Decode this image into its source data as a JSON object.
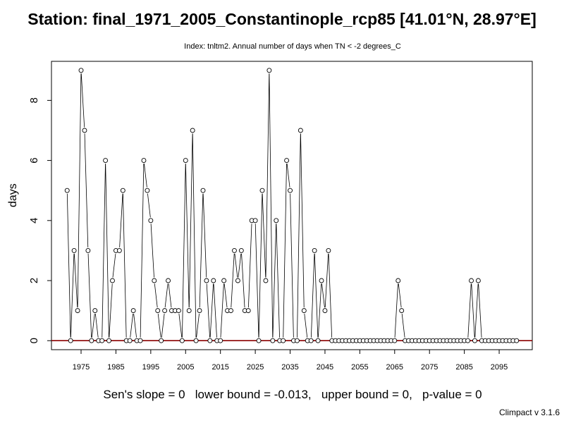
{
  "title": "Station: final_1971_2005_Constantinople_rcp85 [41.01°N, 28.97°E]",
  "subtitle": "Index: tnltm2. Annual number of days when TN < -2 degrees_C",
  "ylabel": "days",
  "footer": "Sen's slope = 0   lower bound = -0.013,   upper bound = 0,   p-value = 0",
  "version": "Climpact v 3.1.6",
  "colors": {
    "trend_line": "#8b0000",
    "series": "#000000",
    "axis": "#000000"
  },
  "chart_data": {
    "type": "line",
    "title": "Station: final_1971_2005_Constantinople_rcp85 [41.01°N, 28.97°E]",
    "xlabel": "",
    "ylabel": "days",
    "xlim": [
      1966.5,
      2104.5
    ],
    "ylim": [
      -0.3,
      9.3
    ],
    "x_ticks": [
      1975,
      1985,
      1995,
      2005,
      2015,
      2025,
      2035,
      2045,
      2055,
      2065,
      2075,
      2085,
      2095
    ],
    "y_ticks": [
      0,
      2,
      4,
      6,
      8
    ],
    "grid": false,
    "x_start": 1971,
    "series": [
      {
        "values": [
          5,
          0,
          3,
          1,
          9,
          7,
          3,
          0,
          1,
          0,
          0,
          6,
          0,
          2,
          3,
          3,
          5,
          0,
          0,
          1,
          0,
          0,
          6,
          5,
          4,
          2,
          1,
          0,
          1,
          2,
          1,
          1,
          1,
          0,
          6,
          1,
          7,
          0,
          1,
          5,
          2,
          0,
          2,
          0,
          0,
          2,
          1,
          1,
          3,
          2,
          3,
          1,
          1,
          4,
          4,
          0,
          5,
          2,
          9,
          0,
          4,
          0,
          0,
          6,
          5,
          0,
          0,
          7,
          1,
          0,
          0,
          3,
          0,
          2,
          1,
          3,
          0,
          0,
          0,
          0,
          0,
          0,
          0,
          0,
          0,
          0,
          0,
          0,
          0,
          0,
          0,
          0,
          0,
          0,
          0,
          2,
          1,
          0,
          0,
          0,
          0,
          0,
          0,
          0,
          0,
          0,
          0,
          0,
          0,
          0,
          0,
          0,
          0,
          0,
          0,
          0,
          2,
          0,
          2,
          0,
          0,
          0,
          0,
          0,
          0,
          0,
          0,
          0,
          0,
          0
        ]
      }
    ],
    "trend_line": {
      "value": 0
    }
  }
}
